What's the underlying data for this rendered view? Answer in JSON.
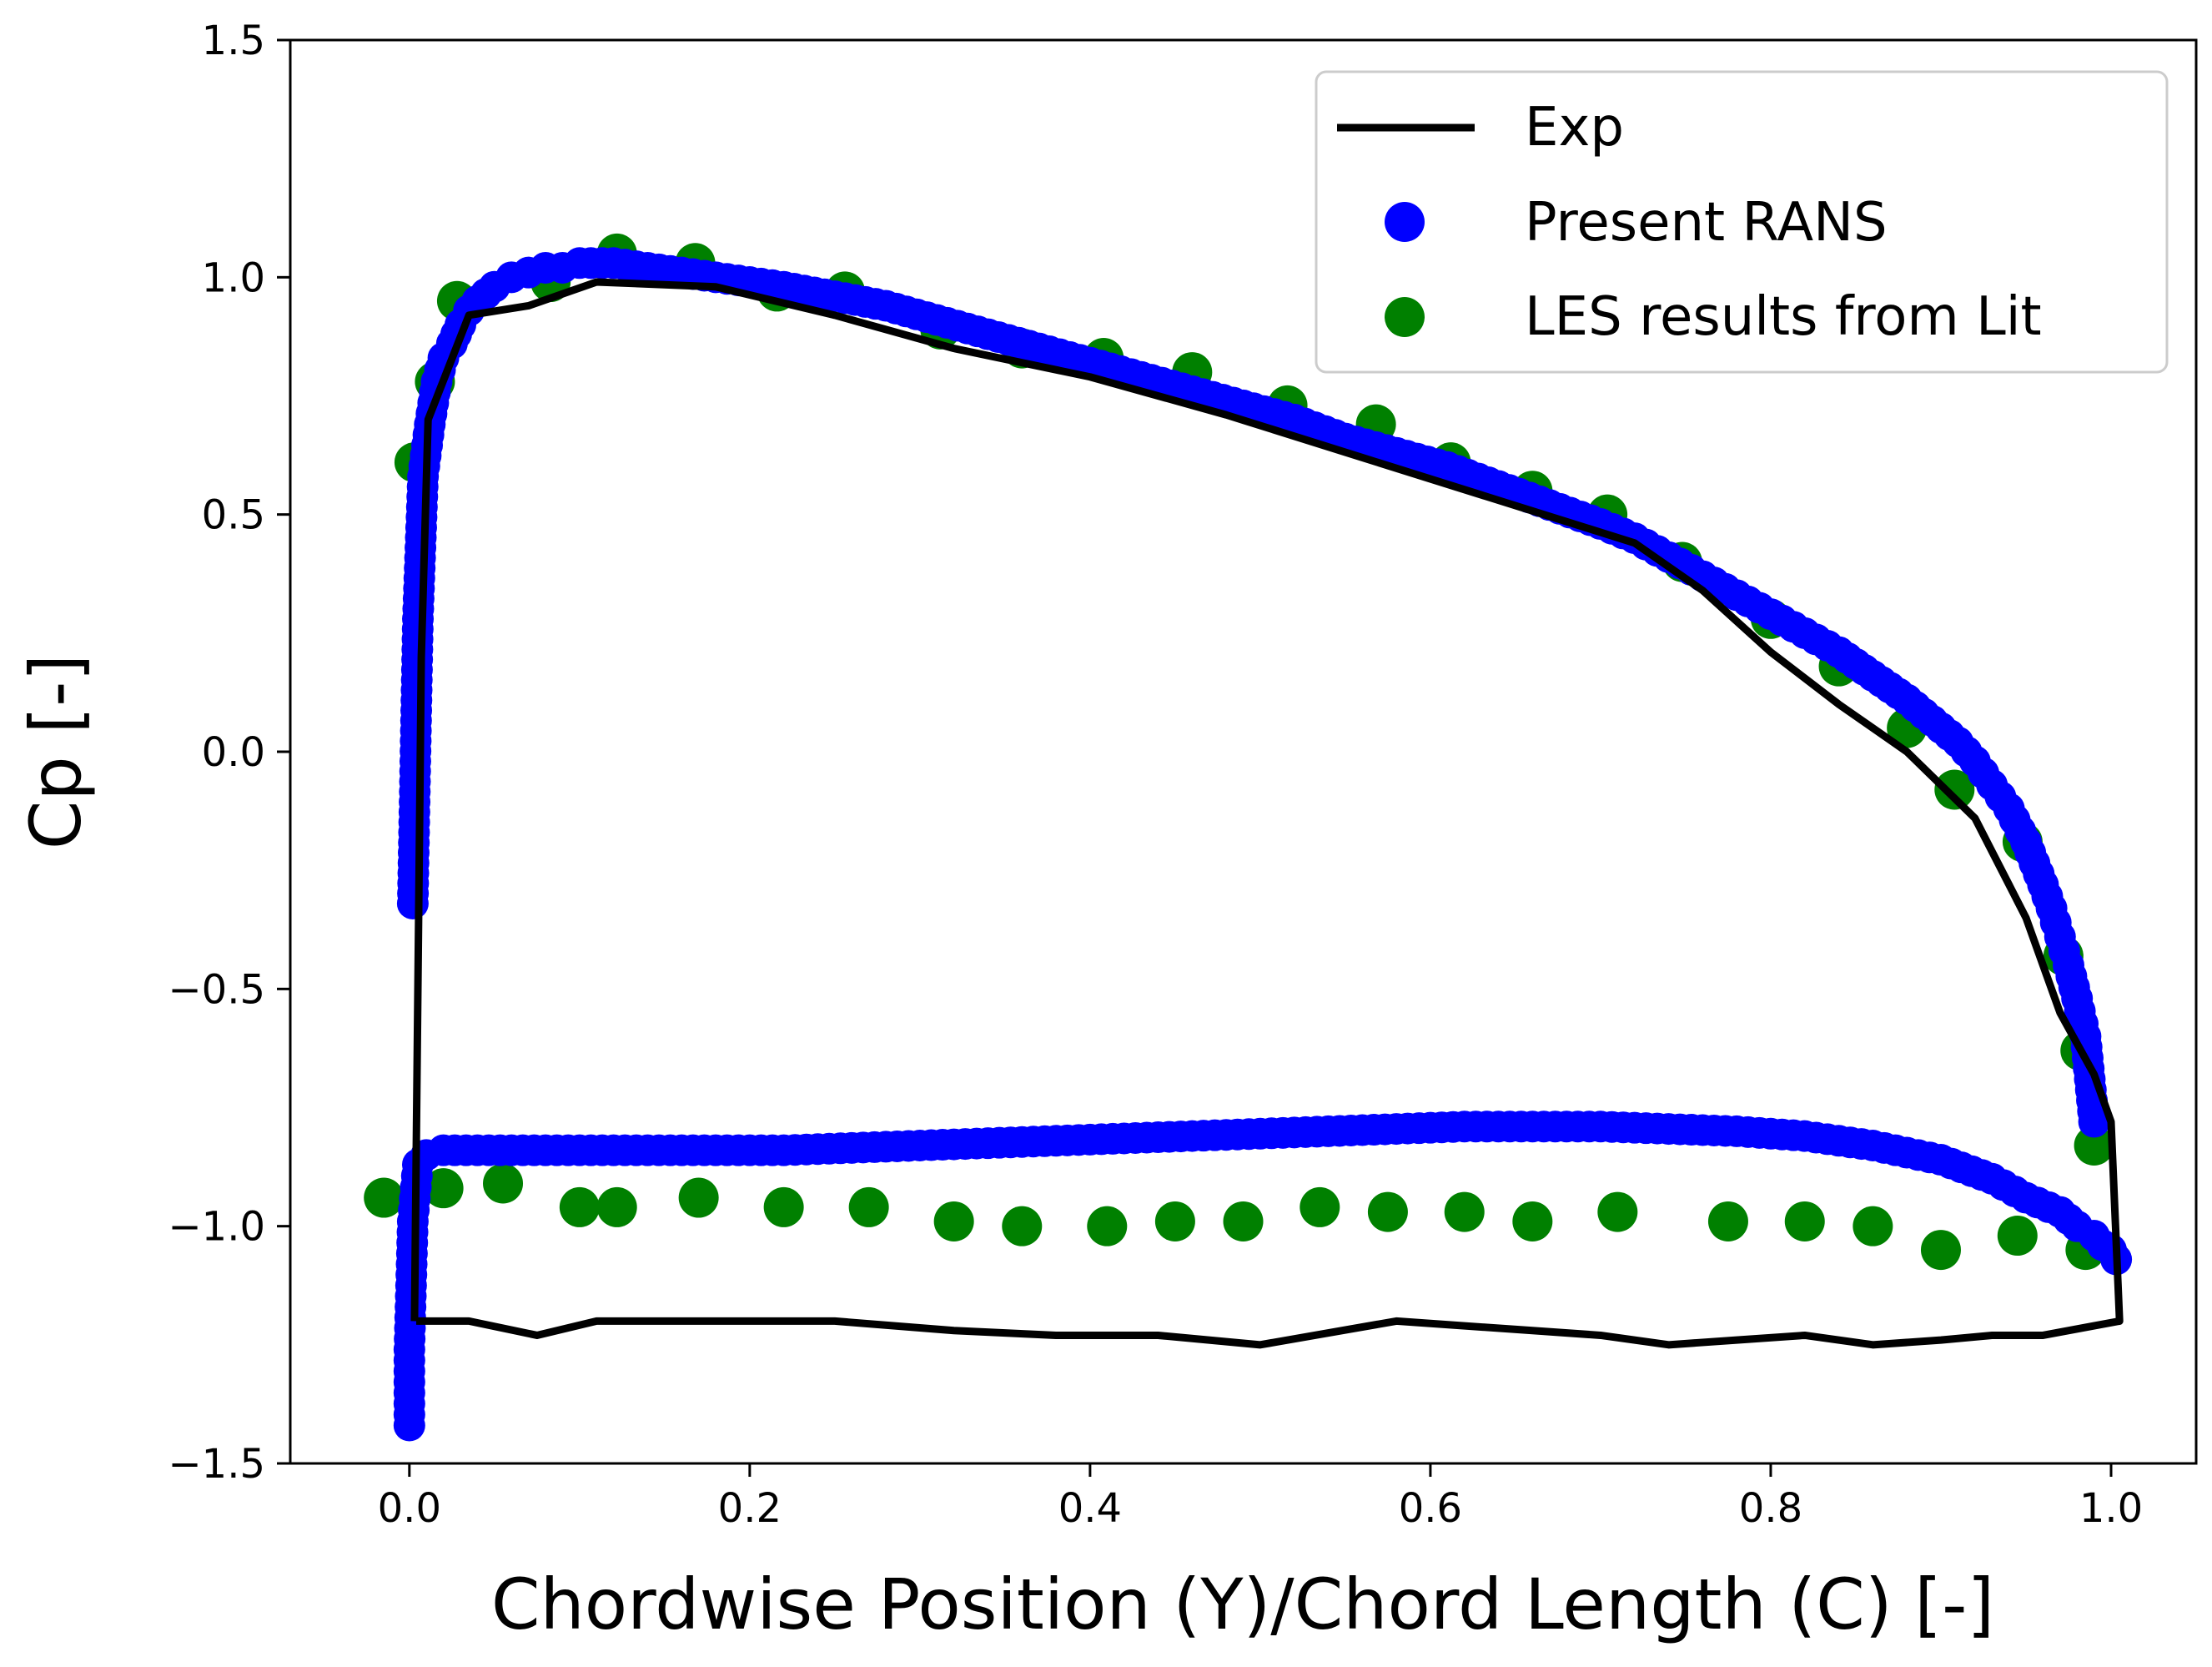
{
  "chart_data": {
    "type": "scatter",
    "title": "",
    "xlabel": "Chordwise Position (Y)/Chord Length (C) [-]",
    "ylabel": "Cp [-]",
    "xlim": [
      -0.07,
      1.05
    ],
    "ylim": [
      -1.5,
      1.5
    ],
    "xticks": [
      0.0,
      0.2,
      0.4,
      0.6,
      0.8,
      1.0
    ],
    "xtick_labels": [
      "0.0",
      "0.2",
      "0.4",
      "0.6",
      "0.8",
      "1.0"
    ],
    "yticks": [
      1.5,
      1.0,
      0.5,
      0.0,
      -0.5,
      -1.0,
      -1.5
    ],
    "ytick_labels": [
      "1.5",
      "1.0",
      "0.5",
      "0.0",
      "−0.5",
      "−1.0",
      "−1.5"
    ],
    "grid": false,
    "legend_position": "top-right",
    "series": [
      {
        "name": "Exp",
        "kind": "line",
        "color": "#000000",
        "x": [
          0.003,
          0.007,
          0.011,
          0.035,
          0.07,
          0.11,
          0.18,
          0.25,
          0.32,
          0.4,
          0.48,
          0.56,
          0.64,
          0.72,
          0.76,
          0.8,
          0.84,
          0.88,
          0.92,
          0.95,
          0.97,
          0.99,
          1.0,
          1.005,
          0.99,
          0.96,
          0.93,
          0.9,
          0.86,
          0.82,
          0.78,
          0.74,
          0.7,
          0.66,
          0.58,
          0.5,
          0.44,
          0.38,
          0.32,
          0.25,
          0.18,
          0.11,
          0.075,
          0.035,
          0.004
        ],
        "y": [
          -1.2,
          0.2,
          0.7,
          0.92,
          0.94,
          0.99,
          0.98,
          0.92,
          0.85,
          0.79,
          0.71,
          0.62,
          0.53,
          0.44,
          0.34,
          0.21,
          0.1,
          0.0,
          -0.14,
          -0.35,
          -0.55,
          -0.68,
          -0.78,
          -1.2,
          -1.21,
          -1.23,
          -1.23,
          -1.24,
          -1.25,
          -1.23,
          -1.24,
          -1.25,
          -1.23,
          -1.22,
          -1.2,
          -1.25,
          -1.23,
          -1.23,
          -1.22,
          -1.2,
          -1.2,
          -1.2,
          -1.23,
          -1.2,
          -1.2
        ]
      },
      {
        "name": "Present RANS",
        "kind": "scatter",
        "color": "#0000ff",
        "upper": {
          "x": [
            0.002,
            0.005,
            0.008,
            0.012,
            0.016,
            0.02,
            0.025,
            0.03,
            0.035,
            0.04,
            0.05,
            0.06,
            0.07,
            0.08,
            0.09,
            0.1,
            0.12,
            0.14,
            0.16,
            0.18,
            0.2,
            0.22,
            0.25,
            0.28,
            0.31,
            0.34,
            0.37,
            0.4,
            0.43,
            0.46,
            0.49,
            0.52,
            0.55,
            0.58,
            0.61,
            0.64,
            0.67,
            0.7,
            0.72,
            0.74,
            0.76,
            0.78,
            0.8,
            0.82,
            0.84,
            0.86,
            0.88,
            0.9,
            0.91,
            0.92,
            0.93,
            0.94,
            0.95,
            0.96,
            0.965,
            0.97,
            0.975,
            0.98,
            0.985,
            0.99
          ],
          "y": [
            -0.32,
            0.28,
            0.58,
            0.69,
            0.78,
            0.83,
            0.86,
            0.9,
            0.93,
            0.95,
            0.98,
            1.0,
            1.01,
            1.02,
            1.02,
            1.03,
            1.03,
            1.02,
            1.01,
            1.0,
            0.99,
            0.98,
            0.96,
            0.94,
            0.91,
            0.88,
            0.85,
            0.82,
            0.79,
            0.76,
            0.73,
            0.7,
            0.66,
            0.63,
            0.6,
            0.56,
            0.52,
            0.48,
            0.45,
            0.41,
            0.37,
            0.33,
            0.29,
            0.25,
            0.21,
            0.16,
            0.11,
            0.05,
            0.02,
            -0.02,
            -0.07,
            -0.12,
            -0.19,
            -0.28,
            -0.33,
            -0.39,
            -0.45,
            -0.52,
            -0.6,
            -0.78
          ]
        },
        "lower": {
          "x": [
            0.0,
            0.0,
            0.002,
            0.005,
            0.01,
            0.02,
            0.04,
            0.06,
            0.08,
            0.1,
            0.14,
            0.18,
            0.22,
            0.26,
            0.3,
            0.34,
            0.38,
            0.42,
            0.46,
            0.5,
            0.54,
            0.58,
            0.62,
            0.66,
            0.7,
            0.74,
            0.78,
            0.82,
            0.86,
            0.9,
            0.93,
            0.95,
            0.97,
            0.98,
            0.99,
            0.995,
            1.0,
            1.003
          ],
          "y": [
            -1.42,
            -1.26,
            -0.99,
            -0.87,
            -0.85,
            -0.84,
            -0.84,
            -0.84,
            -0.84,
            -0.84,
            -0.84,
            -0.84,
            -0.84,
            -0.835,
            -0.83,
            -0.825,
            -0.82,
            -0.815,
            -0.81,
            -0.805,
            -0.8,
            -0.795,
            -0.79,
            -0.79,
            -0.79,
            -0.795,
            -0.8,
            -0.81,
            -0.83,
            -0.86,
            -0.9,
            -0.94,
            -0.97,
            -1.0,
            -1.02,
            -1.04,
            -1.05,
            -1.07
          ]
        }
      },
      {
        "name": "LES results from Lit",
        "kind": "scatter",
        "color": "#008000",
        "upper": {
          "x": [
            0.003,
            0.015,
            0.028,
            0.083,
            0.122,
            0.168,
            0.216,
            0.256,
            0.312,
            0.36,
            0.408,
            0.46,
            0.516,
            0.568,
            0.612,
            0.66,
            0.704,
            0.748,
            0.8,
            0.84,
            0.88,
            0.908,
            0.948,
            0.972,
            0.982,
            0.99
          ],
          "y": [
            0.61,
            0.78,
            0.95,
            0.99,
            1.05,
            1.03,
            0.97,
            0.97,
            0.89,
            0.85,
            0.83,
            0.8,
            0.73,
            0.69,
            0.61,
            0.55,
            0.5,
            0.4,
            0.28,
            0.18,
            0.05,
            -0.08,
            -0.19,
            -0.43,
            -0.63,
            -0.83
          ]
        },
        "lower": {
          "x": [
            -0.015,
            0.02,
            0.055,
            0.1,
            0.122,
            0.17,
            0.22,
            0.27,
            0.32,
            0.36,
            0.41,
            0.45,
            0.49,
            0.535,
            0.575,
            0.62,
            0.66,
            0.71,
            0.775,
            0.82,
            0.86,
            0.9,
            0.945,
            0.985
          ],
          "y": [
            -0.94,
            -0.92,
            -0.91,
            -0.96,
            -0.96,
            -0.94,
            -0.96,
            -0.96,
            -0.99,
            -1.0,
            -1.0,
            -0.99,
            -0.99,
            -0.96,
            -0.97,
            -0.97,
            -0.99,
            -0.97,
            -0.99,
            -0.99,
            -1.0,
            -1.05,
            -1.02,
            -1.05
          ]
        }
      }
    ]
  }
}
